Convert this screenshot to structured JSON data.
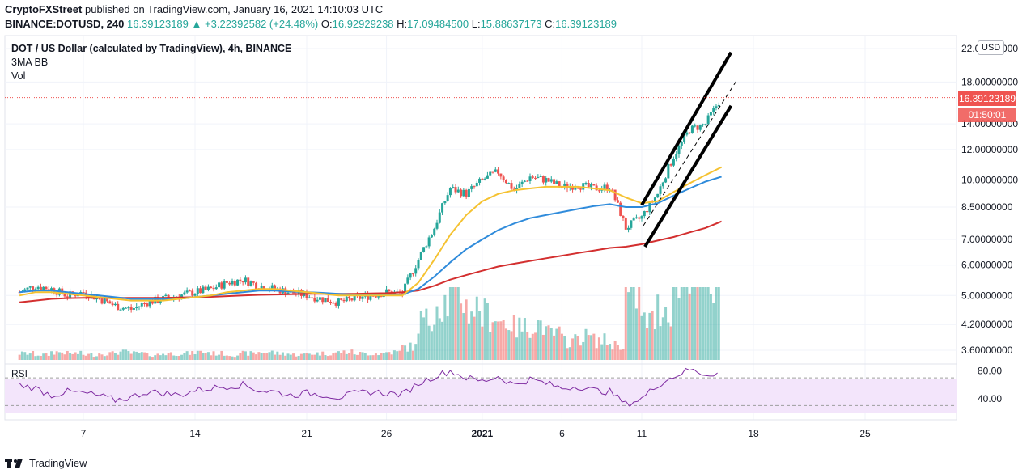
{
  "header": {
    "publisher": "CryptoFXStreet",
    "published_text": "published on TradingView.com, January 16, 2021 14:10:03 UTC"
  },
  "ohlc": {
    "symbol_line": "BINANCE:DOTUSD, 240",
    "last": "16.39123189",
    "change": "+3.22392582 (+24.48%)",
    "o_label": "O:",
    "o": "16.92929238",
    "h_label": "H:",
    "h": "17.09484500",
    "l_label": "L:",
    "l": "15.88637173",
    "c_label": "C:",
    "c": "16.39123189"
  },
  "legend": {
    "title": "DOT / US Dollar (calculated by TradingView), 4h, BINANCE",
    "indicator1": "3MA BB",
    "indicator2": "Vol"
  },
  "currency_button": "USD",
  "price_label": {
    "value": "16.39123189",
    "countdown": "01:50:01",
    "color": "#ef5350"
  },
  "rsi_label": "RSI",
  "footer": {
    "brand": "TradingView"
  },
  "colors": {
    "up": "#26a69a",
    "down": "#ef5350",
    "ma_yellow": "#f5c231",
    "ma_blue": "#2f8bdb",
    "ma_red": "#d32f2f",
    "rsi_line": "#7e2aa1",
    "rsi_band": "#f3e5fb"
  },
  "chart_data": {
    "type": "candlestick",
    "title": "DOT / US Dollar (calculated by TradingView), 4h, BINANCE",
    "price_axis_ticks": [
      "22.00000000",
      "18.00000000",
      "14.00000000",
      "12.00000000",
      "10.00000000",
      "8.50000000",
      "7.00000000",
      "6.00000000",
      "5.00000000",
      "4.20000000",
      "3.60000000"
    ],
    "price_scale": "log",
    "x_ticks": [
      "7",
      "14",
      "21",
      "26",
      "2021",
      "6",
      "11",
      "18",
      "25"
    ],
    "rsi_ticks": [
      "80.00",
      "40.00"
    ],
    "close_path_days": [
      3,
      4,
      5,
      6,
      7,
      8,
      9,
      10,
      11,
      12,
      13,
      14,
      15,
      16,
      17,
      18,
      19,
      20,
      21,
      22,
      23,
      24,
      25,
      26,
      27,
      28,
      29,
      30,
      31,
      32,
      33,
      34,
      35,
      36,
      37,
      38,
      39,
      40,
      41,
      42,
      43,
      44,
      45,
      46,
      47
    ],
    "close_path_values": [
      5.1,
      5.3,
      5.2,
      5.0,
      5.1,
      4.9,
      4.7,
      4.6,
      4.8,
      4.9,
      5.0,
      5.1,
      5.2,
      5.4,
      5.5,
      5.3,
      5.2,
      5.1,
      5.0,
      4.9,
      4.8,
      4.9,
      5.0,
      5.1,
      5.05,
      6.2,
      7.5,
      9.5,
      9.2,
      10.0,
      10.5,
      9.4,
      10.2,
      10.0,
      9.6,
      9.7,
      9.5,
      9.6,
      7.5,
      8.0,
      9.2,
      11.5,
      13.5,
      14.0,
      16.4
    ],
    "ma_yellow": [
      5.0,
      5.1,
      5.1,
      5.05,
      5.0,
      4.95,
      4.9,
      4.85,
      4.85,
      4.85,
      4.9,
      4.95,
      5.0,
      5.1,
      5.15,
      5.2,
      5.2,
      5.15,
      5.1,
      5.05,
      5.0,
      5.0,
      5.0,
      5.0,
      5.0,
      5.4,
      6.2,
      7.2,
      8.1,
      8.8,
      9.2,
      9.4,
      9.5,
      9.6,
      9.6,
      9.6,
      9.5,
      9.4,
      9.0,
      8.7,
      8.8,
      9.3,
      9.8,
      10.3,
      10.8
    ],
    "ma_blue": [
      5.1,
      5.15,
      5.15,
      5.1,
      5.05,
      5.0,
      4.95,
      4.9,
      4.9,
      4.9,
      4.9,
      4.95,
      5.0,
      5.05,
      5.1,
      5.15,
      5.15,
      5.12,
      5.1,
      5.08,
      5.05,
      5.03,
      5.03,
      5.03,
      5.03,
      5.2,
      5.6,
      6.1,
      6.6,
      7.0,
      7.4,
      7.7,
      7.95,
      8.1,
      8.25,
      8.4,
      8.55,
      8.65,
      8.5,
      8.5,
      8.7,
      9.1,
      9.5,
      9.9,
      10.2
    ],
    "ma_red": [
      4.8,
      4.85,
      4.9,
      4.92,
      4.93,
      4.93,
      4.93,
      4.93,
      4.93,
      4.93,
      4.94,
      4.95,
      4.96,
      4.98,
      5.0,
      5.02,
      5.03,
      5.04,
      5.05,
      5.05,
      5.05,
      5.05,
      5.06,
      5.07,
      5.1,
      5.15,
      5.3,
      5.5,
      5.65,
      5.8,
      5.95,
      6.05,
      6.15,
      6.25,
      6.35,
      6.45,
      6.55,
      6.65,
      6.7,
      6.8,
      6.95,
      7.1,
      7.3,
      7.5,
      7.8
    ],
    "volume_relative": [
      0.05,
      0.04,
      0.06,
      0.05,
      0.04,
      0.05,
      0.06,
      0.05,
      0.04,
      0.05,
      0.05,
      0.06,
      0.05,
      0.04,
      0.05,
      0.06,
      0.05,
      0.04,
      0.05,
      0.05,
      0.06,
      0.05,
      0.05,
      0.06,
      0.1,
      0.3,
      0.45,
      0.5,
      0.4,
      0.35,
      0.3,
      0.25,
      0.28,
      0.2,
      0.15,
      0.18,
      0.15,
      0.12,
      0.5,
      0.3,
      0.4,
      0.6,
      0.8,
      0.55,
      0.7
    ],
    "rsi_values": [
      60,
      55,
      45,
      50,
      48,
      44,
      38,
      42,
      50,
      48,
      45,
      52,
      55,
      58,
      60,
      52,
      50,
      45,
      48,
      46,
      42,
      47,
      50,
      48,
      46,
      62,
      72,
      80,
      70,
      65,
      72,
      60,
      68,
      62,
      55,
      58,
      52,
      50,
      32,
      40,
      60,
      72,
      82,
      75,
      78
    ],
    "current_price": 16.39123189
  }
}
